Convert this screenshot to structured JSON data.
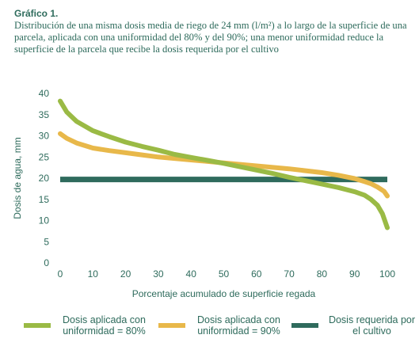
{
  "caption": {
    "label": "Gráfico 1.",
    "text": "Distribución de una misma dosis media de riego de 24 mm (l/m²) a lo largo de la superficie de una parcela, aplicada con una uniformidad del 80% y del 90%; una menor uniformidad reduce la superficie de la parcela que recibe la dosis requerida por el cultivo"
  },
  "colors": {
    "text": "#2e6b5c",
    "s80": "#9aba45",
    "s90": "#e8b84a",
    "req": "#2f6b5d"
  },
  "chart_data": {
    "type": "line",
    "xlabel": "Porcentaje acumulado de superficie regada",
    "ylabel": "Dosis de agua, mm",
    "xlim": [
      0,
      100
    ],
    "ylim": [
      0,
      40
    ],
    "xticks": [
      0,
      10,
      20,
      30,
      40,
      50,
      60,
      70,
      80,
      90,
      100
    ],
    "yticks": [
      0,
      5,
      10,
      15,
      20,
      25,
      30,
      35,
      40
    ],
    "grid": false,
    "legend_position": "bottom",
    "series": [
      {
        "name": "Dosis aplicada con uniformidad = 80%",
        "color": "#9aba45",
        "x": [
          0,
          2,
          5,
          10,
          15,
          20,
          25,
          30,
          35,
          40,
          45,
          50,
          55,
          60,
          65,
          70,
          75,
          80,
          85,
          90,
          93,
          95,
          97,
          98.5,
          100
        ],
        "y": [
          38.2,
          35.6,
          33.4,
          31.2,
          29.8,
          28.5,
          27.5,
          26.6,
          25.6,
          24.9,
          24.2,
          23.5,
          22.7,
          21.9,
          21.1,
          20.2,
          19.4,
          18.6,
          17.8,
          16.8,
          16.0,
          15.0,
          13.6,
          11.6,
          8.3
        ]
      },
      {
        "name": "Dosis aplicada con uniformidad = 90%",
        "color": "#e8b84a",
        "x": [
          0,
          2,
          5,
          10,
          15,
          20,
          25,
          30,
          40,
          50,
          60,
          70,
          80,
          85,
          90,
          93,
          95,
          97,
          99,
          100
        ],
        "y": [
          30.5,
          29.4,
          28.3,
          27.1,
          26.5,
          26.0,
          25.5,
          25.0,
          24.3,
          23.6,
          22.9,
          22.2,
          21.3,
          20.7,
          19.9,
          19.2,
          18.7,
          17.9,
          16.9,
          15.8
        ]
      },
      {
        "name": "Dosis requerida por el cultivo",
        "color": "#2f6b5d",
        "x": [
          0,
          100
        ],
        "y": [
          19.7,
          19.7
        ]
      }
    ]
  },
  "legend": {
    "items": [
      {
        "label": "Dosis aplicada con uniformidad = 80%",
        "color": "#9aba45"
      },
      {
        "label": "Dosis aplicada con uniformidad = 90%",
        "color": "#e8b84a"
      },
      {
        "label": "Dosis requerida por el cultivo",
        "color": "#2f6b5d"
      }
    ]
  }
}
